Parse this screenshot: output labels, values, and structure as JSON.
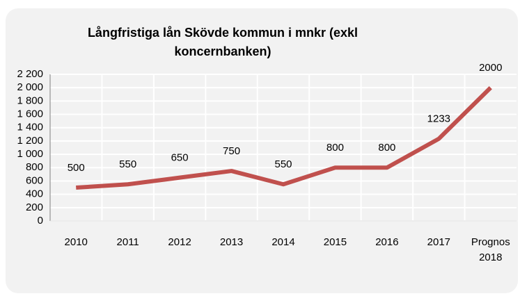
{
  "chart_data": {
    "type": "line",
    "title": "Långfristiga lån Skövde kommun i mnkr (exkl koncernbanken)",
    "categories": [
      "2010",
      "2011",
      "2012",
      "2013",
      "2014",
      "2015",
      "2016",
      "2017",
      "Prognos 2018"
    ],
    "series": [
      {
        "name": "Långfristiga lån",
        "color": "#c0504d",
        "values": [
          500,
          550,
          650,
          750,
          550,
          800,
          800,
          1233,
          2000
        ]
      }
    ],
    "ylim": [
      0,
      2200
    ],
    "yticks": [
      0,
      200,
      400,
      600,
      800,
      {
        "value": 1000,
        "label": "1 000"
      },
      {
        "value": 1200,
        "label": "1 200"
      },
      {
        "value": 1400,
        "label": "1 400"
      },
      {
        "value": 1600,
        "label": "1 600"
      },
      {
        "value": 1800,
        "label": "1 800"
      },
      {
        "value": 2000,
        "label": "2 000"
      },
      {
        "value": 2200,
        "label": "2 200"
      }
    ],
    "grid": true
  }
}
